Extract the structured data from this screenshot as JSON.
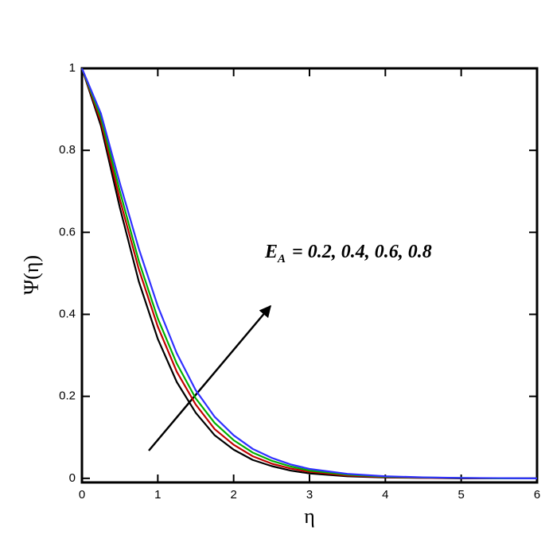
{
  "chart_data": {
    "type": "line",
    "x_label": "η",
    "y_label": "Ψ(η)",
    "annotation": {
      "symbol": "E",
      "subscript": "A",
      "text": "= 0.2, 0.4, 0.6, 0.8"
    },
    "x": [
      0,
      0.25,
      0.5,
      0.75,
      1,
      1.25,
      1.5,
      1.75,
      2,
      2.25,
      2.5,
      2.75,
      3,
      3.5,
      4,
      4.5,
      5,
      5.5,
      6
    ],
    "series": [
      {
        "color": "#000000",
        "values": [
          1,
          0.86,
          0.66,
          0.48,
          0.34,
          0.235,
          0.16,
          0.105,
          0.07,
          0.045,
          0.03,
          0.019,
          0.012,
          0.005,
          0.002,
          0.001,
          0,
          0,
          0
        ]
      },
      {
        "color": "#c00000",
        "values": [
          1,
          0.87,
          0.68,
          0.51,
          0.37,
          0.26,
          0.18,
          0.12,
          0.082,
          0.054,
          0.036,
          0.024,
          0.016,
          0.007,
          0.003,
          0.001,
          0.0005,
          0,
          0
        ]
      },
      {
        "color": "#00b000",
        "values": [
          1,
          0.88,
          0.7,
          0.53,
          0.39,
          0.28,
          0.195,
          0.135,
          0.093,
          0.063,
          0.043,
          0.029,
          0.019,
          0.009,
          0.004,
          0.002,
          0.001,
          0,
          0
        ]
      },
      {
        "color": "#3030ff",
        "values": [
          1,
          0.89,
          0.72,
          0.56,
          0.42,
          0.305,
          0.215,
          0.15,
          0.105,
          0.072,
          0.05,
          0.034,
          0.023,
          0.011,
          0.005,
          0.0025,
          0.001,
          0.0005,
          0
        ]
      }
    ],
    "xlim": [
      0,
      6
    ],
    "xticks": [
      0,
      1,
      2,
      3,
      4,
      5,
      6
    ],
    "ylim": [
      -0.01,
      1
    ],
    "yticks": [
      0,
      0.2,
      0.4,
      0.6,
      0.8,
      1
    ]
  }
}
